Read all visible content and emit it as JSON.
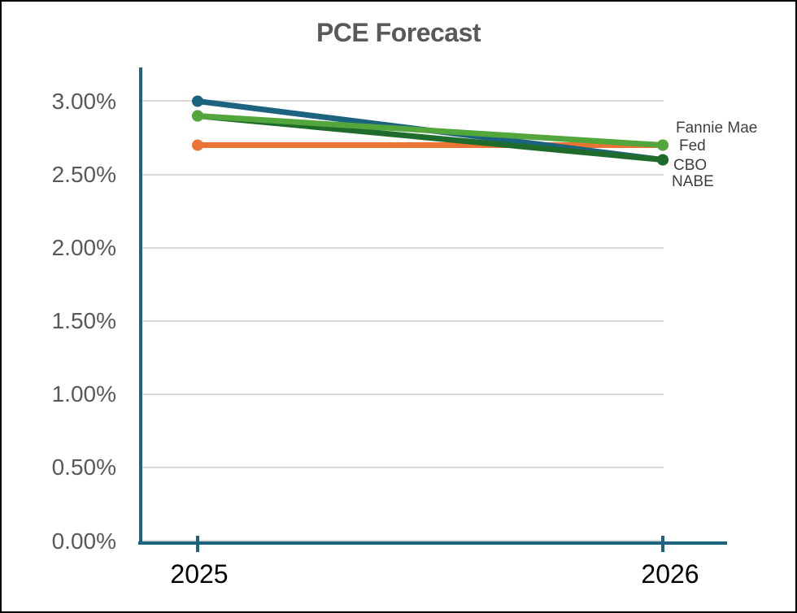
{
  "window": {
    "background": "#FFFFFF",
    "border_color": "#000000"
  },
  "chart_data": {
    "type": "line",
    "title": "PCE Forecast",
    "categories": [
      "2025",
      "2026"
    ],
    "series": [
      {
        "name": "Fannie Mae",
        "color": "#53A63B",
        "values": [
          2.9,
          2.7
        ]
      },
      {
        "name": "Fed",
        "color": "#E97433",
        "values": [
          2.7,
          2.7
        ]
      },
      {
        "name": "CBO",
        "color": "#1F6B2B",
        "values": [
          2.9,
          2.6
        ]
      },
      {
        "name": "NABE",
        "color": "#1C6380",
        "values": [
          3.0,
          2.6
        ]
      }
    ],
    "ytick_labels": [
      "3.00%",
      "2.50%",
      "2.00%",
      "1.50%",
      "1.00%",
      "0.50%",
      "0.00%"
    ],
    "ytick_values": [
      3.0,
      2.5,
      2.0,
      1.5,
      1.0,
      0.5,
      0.0
    ],
    "ylim": [
      0,
      3.25
    ],
    "grid": "horizontal",
    "gridline_color": "#D9D9D9",
    "axis_color": "#1C6380",
    "marker": "circle",
    "legend_position": "labels-at-line-end",
    "text_colors": {
      "title": "#595959",
      "y_labels": "#595959",
      "x_labels": "#000000",
      "end_labels": "#3F3F3F"
    }
  }
}
